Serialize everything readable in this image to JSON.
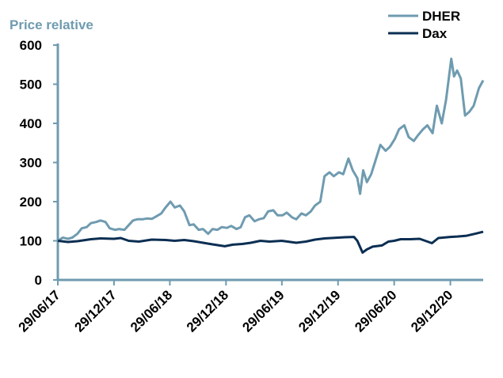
{
  "chart_data": {
    "type": "line",
    "title": "Price relative",
    "xlabel": "",
    "ylabel": "",
    "ylim": [
      0,
      600
    ],
    "yticks": [
      "0",
      "100",
      "200",
      "300",
      "400",
      "500",
      "600"
    ],
    "xticks": [
      {
        "date": "2017-06-29",
        "label": "29/06/17"
      },
      {
        "date": "2017-12-29",
        "label": "29/12/17"
      },
      {
        "date": "2018-06-29",
        "label": "29/06/18"
      },
      {
        "date": "2018-12-29",
        "label": "29/12/18"
      },
      {
        "date": "2019-06-29",
        "label": "29/06/19"
      },
      {
        "date": "2019-12-29",
        "label": "29/12/19"
      },
      {
        "date": "2020-06-29",
        "label": "29/06/20"
      },
      {
        "date": "2020-12-29",
        "label": "29/12/20"
      }
    ],
    "xlim": [
      "2017-06-29",
      "2021-04-15"
    ],
    "grid": false,
    "legend": "top-right",
    "series": [
      {
        "name": "DHER",
        "color": "#6f9bb0",
        "points": [
          [
            "2017-06-29",
            100
          ],
          [
            "2017-07-15",
            108
          ],
          [
            "2017-08-01",
            105
          ],
          [
            "2017-08-15",
            108
          ],
          [
            "2017-09-01",
            118
          ],
          [
            "2017-09-15",
            132
          ],
          [
            "2017-10-01",
            135
          ],
          [
            "2017-10-15",
            145
          ],
          [
            "2017-11-01",
            148
          ],
          [
            "2017-11-15",
            152
          ],
          [
            "2017-12-01",
            148
          ],
          [
            "2017-12-15",
            132
          ],
          [
            "2018-01-01",
            128
          ],
          [
            "2018-01-15",
            130
          ],
          [
            "2018-02-01",
            128
          ],
          [
            "2018-02-15",
            140
          ],
          [
            "2018-03-01",
            152
          ],
          [
            "2018-03-15",
            155
          ],
          [
            "2018-04-01",
            155
          ],
          [
            "2018-04-15",
            157
          ],
          [
            "2018-05-01",
            156
          ],
          [
            "2018-05-15",
            162
          ],
          [
            "2018-06-01",
            170
          ],
          [
            "2018-06-15",
            185
          ],
          [
            "2018-07-01",
            200
          ],
          [
            "2018-07-15",
            185
          ],
          [
            "2018-08-01",
            190
          ],
          [
            "2018-08-15",
            175
          ],
          [
            "2018-09-01",
            140
          ],
          [
            "2018-09-15",
            142
          ],
          [
            "2018-10-01",
            128
          ],
          [
            "2018-10-15",
            130
          ],
          [
            "2018-11-01",
            118
          ],
          [
            "2018-11-15",
            130
          ],
          [
            "2018-12-01",
            128
          ],
          [
            "2018-12-15",
            135
          ],
          [
            "2019-01-01",
            133
          ],
          [
            "2019-01-15",
            138
          ],
          [
            "2019-02-01",
            130
          ],
          [
            "2019-02-15",
            135
          ],
          [
            "2019-03-01",
            160
          ],
          [
            "2019-03-15",
            165
          ],
          [
            "2019-04-01",
            150
          ],
          [
            "2019-04-15",
            155
          ],
          [
            "2019-05-01",
            158
          ],
          [
            "2019-05-15",
            175
          ],
          [
            "2019-06-01",
            178
          ],
          [
            "2019-06-15",
            165
          ],
          [
            "2019-07-01",
            165
          ],
          [
            "2019-07-15",
            172
          ],
          [
            "2019-08-01",
            160
          ],
          [
            "2019-08-15",
            155
          ],
          [
            "2019-09-01",
            170
          ],
          [
            "2019-09-15",
            165
          ],
          [
            "2019-10-01",
            175
          ],
          [
            "2019-10-15",
            190
          ],
          [
            "2019-11-01",
            200
          ],
          [
            "2019-11-15",
            265
          ],
          [
            "2019-12-01",
            275
          ],
          [
            "2019-12-15",
            265
          ],
          [
            "2020-01-01",
            275
          ],
          [
            "2020-01-15",
            270
          ],
          [
            "2020-02-01",
            310
          ],
          [
            "2020-02-15",
            280
          ],
          [
            "2020-03-01",
            260
          ],
          [
            "2020-03-10",
            220
          ],
          [
            "2020-03-20",
            280
          ],
          [
            "2020-04-01",
            250
          ],
          [
            "2020-04-15",
            270
          ],
          [
            "2020-05-01",
            310
          ],
          [
            "2020-05-15",
            345
          ],
          [
            "2020-06-01",
            330
          ],
          [
            "2020-06-15",
            340
          ],
          [
            "2020-07-01",
            360
          ],
          [
            "2020-07-15",
            385
          ],
          [
            "2020-08-01",
            395
          ],
          [
            "2020-08-15",
            365
          ],
          [
            "2020-09-01",
            355
          ],
          [
            "2020-09-15",
            370
          ],
          [
            "2020-10-01",
            385
          ],
          [
            "2020-10-15",
            395
          ],
          [
            "2020-11-01",
            375
          ],
          [
            "2020-11-15",
            445
          ],
          [
            "2020-12-01",
            400
          ],
          [
            "2020-12-15",
            460
          ],
          [
            "2021-01-01",
            565
          ],
          [
            "2021-01-10",
            520
          ],
          [
            "2021-01-20",
            535
          ],
          [
            "2021-02-01",
            515
          ],
          [
            "2021-02-15",
            420
          ],
          [
            "2021-03-01",
            430
          ],
          [
            "2021-03-15",
            445
          ],
          [
            "2021-04-01",
            490
          ],
          [
            "2021-04-15",
            510
          ]
        ]
      },
      {
        "name": "Dax",
        "color": "#0b2e52",
        "points": [
          [
            "2017-06-29",
            100
          ],
          [
            "2017-08-01",
            97
          ],
          [
            "2017-09-01",
            99
          ],
          [
            "2017-10-15",
            104
          ],
          [
            "2017-11-15",
            106
          ],
          [
            "2017-12-29",
            105
          ],
          [
            "2018-01-20",
            107
          ],
          [
            "2018-02-15",
            100
          ],
          [
            "2018-03-20",
            98
          ],
          [
            "2018-05-01",
            103
          ],
          [
            "2018-06-15",
            102
          ],
          [
            "2018-07-15",
            100
          ],
          [
            "2018-08-15",
            102
          ],
          [
            "2018-09-15",
            99
          ],
          [
            "2018-10-15",
            95
          ],
          [
            "2018-11-15",
            91
          ],
          [
            "2018-12-25",
            86
          ],
          [
            "2019-01-20",
            90
          ],
          [
            "2019-02-20",
            92
          ],
          [
            "2019-03-20",
            95
          ],
          [
            "2019-04-20",
            100
          ],
          [
            "2019-05-20",
            98
          ],
          [
            "2019-06-29",
            100
          ],
          [
            "2019-08-15",
            95
          ],
          [
            "2019-09-15",
            98
          ],
          [
            "2019-10-15",
            103
          ],
          [
            "2019-11-15",
            106
          ],
          [
            "2019-12-29",
            108
          ],
          [
            "2020-01-20",
            109
          ],
          [
            "2020-02-19",
            110
          ],
          [
            "2020-03-01",
            100
          ],
          [
            "2020-03-18",
            70
          ],
          [
            "2020-04-01",
            78
          ],
          [
            "2020-04-20",
            85
          ],
          [
            "2020-05-20",
            88
          ],
          [
            "2020-06-10",
            98
          ],
          [
            "2020-06-29",
            100
          ],
          [
            "2020-07-20",
            104
          ],
          [
            "2020-08-20",
            104
          ],
          [
            "2020-09-20",
            105
          ],
          [
            "2020-10-30",
            94
          ],
          [
            "2020-11-20",
            107
          ],
          [
            "2020-12-29",
            110
          ],
          [
            "2021-01-20",
            111
          ],
          [
            "2021-02-20",
            113
          ],
          [
            "2021-03-20",
            118
          ],
          [
            "2021-04-15",
            123
          ]
        ]
      }
    ]
  }
}
